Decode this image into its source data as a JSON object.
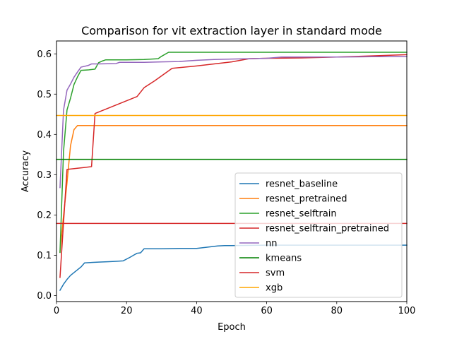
{
  "chart_data": {
    "type": "line",
    "title": "Comparison for vit extraction layer in standard mode",
    "xlabel": "Epoch",
    "ylabel": "Accuracy",
    "xlim": [
      0,
      100
    ],
    "ylim": [
      -0.015,
      0.632
    ],
    "xticks": [
      0,
      20,
      40,
      60,
      80,
      100
    ],
    "yticks": [
      0.0,
      0.1,
      0.2,
      0.3,
      0.4,
      0.5,
      0.6
    ],
    "ytick_labels": [
      "0.0",
      "0.1",
      "0.2",
      "0.3",
      "0.4",
      "0.5",
      "0.6"
    ],
    "grid": false,
    "legend_placement": "lower-right",
    "series": [
      {
        "name": "resnet_baseline",
        "color": "#1f77b4",
        "x": [
          1,
          2,
          3,
          4,
          5,
          6,
          7,
          8,
          10,
          12,
          15,
          17,
          19,
          21,
          22,
          23,
          24,
          25,
          27,
          30,
          35,
          36,
          40,
          43,
          46,
          48,
          50,
          60,
          70,
          80,
          90,
          100
        ],
        "y": [
          0.013,
          0.028,
          0.04,
          0.05,
          0.057,
          0.064,
          0.071,
          0.081,
          0.082,
          0.083,
          0.084,
          0.085,
          0.086,
          0.095,
          0.1,
          0.105,
          0.106,
          0.116,
          0.116,
          0.116,
          0.117,
          0.117,
          0.117,
          0.12,
          0.123,
          0.124,
          0.124,
          0.125,
          0.125,
          0.125,
          0.125,
          0.125
        ]
      },
      {
        "name": "resnet_pretrained",
        "color": "#ff7f0e",
        "x": [
          1,
          2,
          3,
          4,
          5,
          6,
          100
        ],
        "y": [
          0.108,
          0.198,
          0.28,
          0.372,
          0.412,
          0.422,
          0.422
        ]
      },
      {
        "name": "resnet_selftrain",
        "color": "#2ca02c",
        "x": [
          1,
          2,
          3,
          4,
          5,
          6,
          7,
          9,
          11,
          12,
          13,
          14,
          20,
          25,
          29,
          30,
          32,
          40,
          50,
          60,
          70,
          80,
          90,
          100
        ],
        "y": [
          0.107,
          0.357,
          0.461,
          0.49,
          0.524,
          0.543,
          0.559,
          0.56,
          0.562,
          0.578,
          0.582,
          0.585,
          0.585,
          0.586,
          0.588,
          0.594,
          0.604,
          0.604,
          0.604,
          0.604,
          0.604,
          0.604,
          0.604,
          0.604
        ]
      },
      {
        "name": "resnet_selftrain_pretrained",
        "color": "#d62728",
        "x": [
          1,
          2,
          3,
          8,
          10,
          11,
          19,
          23,
          25,
          28,
          33,
          40,
          50,
          55,
          60,
          70,
          80,
          90,
          100
        ],
        "y": [
          0.045,
          0.18,
          0.313,
          0.318,
          0.32,
          0.452,
          0.48,
          0.494,
          0.516,
          0.533,
          0.564,
          0.57,
          0.58,
          0.588,
          0.589,
          0.59,
          0.592,
          0.595,
          0.598
        ]
      },
      {
        "name": "nn",
        "color": "#9467bd",
        "x": [
          1,
          2,
          3,
          4,
          5,
          6,
          7,
          9,
          10,
          12,
          17,
          18,
          20,
          25,
          30,
          35,
          40,
          45,
          50,
          55,
          60,
          64,
          70,
          80,
          90,
          100
        ],
        "y": [
          0.268,
          0.46,
          0.51,
          0.525,
          0.542,
          0.555,
          0.567,
          0.571,
          0.575,
          0.575,
          0.576,
          0.579,
          0.579,
          0.579,
          0.58,
          0.581,
          0.584,
          0.586,
          0.587,
          0.588,
          0.589,
          0.592,
          0.592,
          0.592,
          0.593,
          0.593
        ]
      },
      {
        "name": "kmeans",
        "color": "#008000",
        "x": [
          0,
          100
        ],
        "y": [
          0.338,
          0.338
        ]
      },
      {
        "name": "svm",
        "color": "#d62728",
        "x": [
          0,
          100
        ],
        "y": [
          0.179,
          0.179
        ]
      },
      {
        "name": "xgb",
        "color": "#ffa500",
        "x": [
          0,
          100
        ],
        "y": [
          0.447,
          0.447
        ]
      }
    ]
  }
}
